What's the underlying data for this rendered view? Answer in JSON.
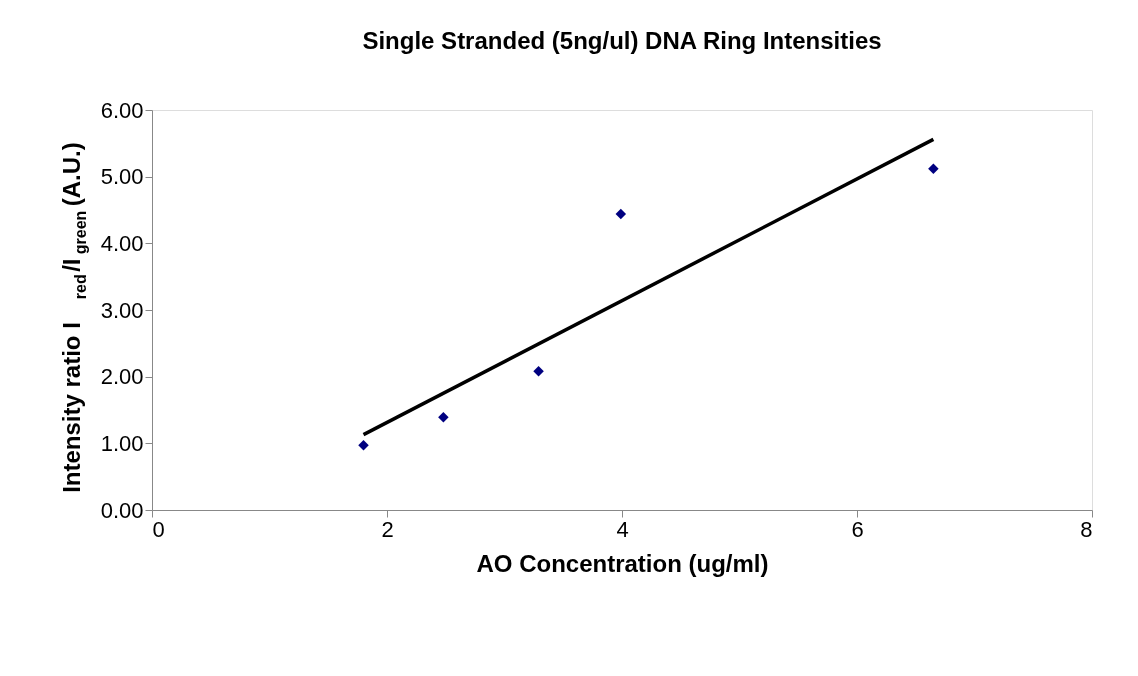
{
  "chart_data": {
    "type": "scatter",
    "title": "Single Stranded (5ng/ul) DNA Ring Intensities",
    "xlabel": "AO Concentration (ug/ml)",
    "ylabel": "Intensity ratio I$_{red}$/I$_{green}$ (A.U.)",
    "series": [
      {
        "color": "#000080",
        "marker": "diamond",
        "x": [
          1.8,
          2.48,
          3.29,
          3.99,
          6.65
        ],
        "values": [
          0.97,
          1.39,
          2.08,
          4.44,
          5.12
        ]
      },
      {
        "type": "line",
        "color": "#000000",
        "marker": "none",
        "x": [
          1.8,
          6.65
        ],
        "values": [
          1.13,
          5.56
        ]
      }
    ],
    "xlim": [
      0,
      8
    ],
    "xticks": [
      0,
      2,
      4,
      6,
      8
    ],
    "ylim": [
      0,
      6
    ],
    "yticks": [
      {
        "value": 0,
        "label": "0.00"
      },
      {
        "value": 1,
        "label": "1.00"
      },
      {
        "value": 2,
        "label": "2.00"
      },
      {
        "value": 3,
        "label": "3.00"
      },
      {
        "value": 4,
        "label": "4.00"
      },
      {
        "value": 5,
        "label": "5.00"
      },
      {
        "value": 6,
        "label": "6.00"
      }
    ],
    "grid": false
  }
}
